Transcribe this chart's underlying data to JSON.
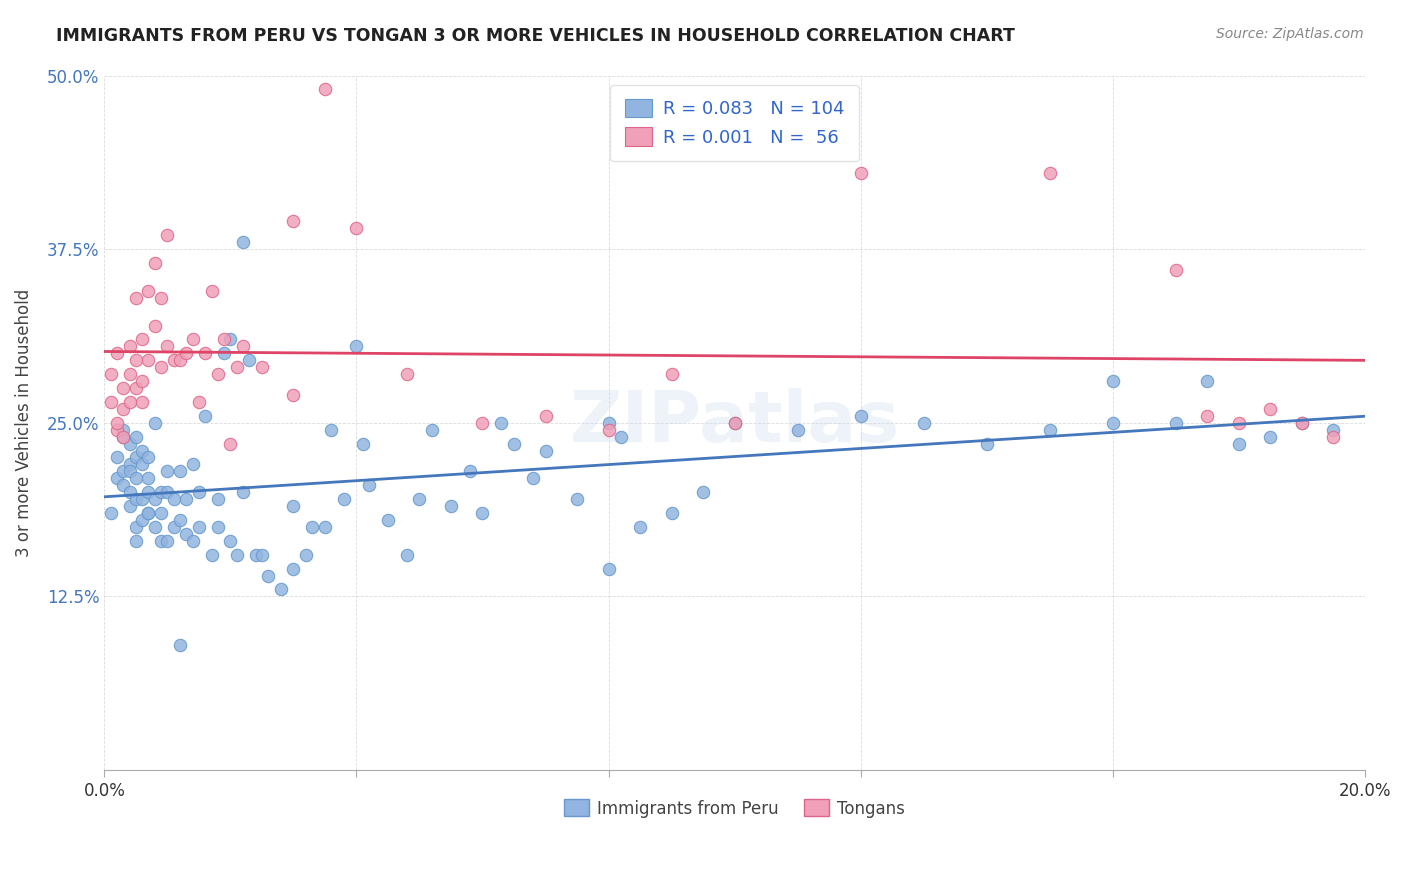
{
  "title": "IMMIGRANTS FROM PERU VS TONGAN 3 OR MORE VEHICLES IN HOUSEHOLD CORRELATION CHART",
  "source": "Source: ZipAtlas.com",
  "ylabel": "3 or more Vehicles in Household",
  "xlim": [
    0.0,
    0.2
  ],
  "ylim": [
    0.0,
    0.5
  ],
  "xticks": [
    0.0,
    0.2
  ],
  "xtick_labels": [
    "0.0%",
    "20.0%"
  ],
  "ytick_labels": [
    "12.5%",
    "25.0%",
    "37.5%",
    "50.0%"
  ],
  "ytick_vals": [
    0.125,
    0.25,
    0.375,
    0.5
  ],
  "peru_color": "#92b4e0",
  "peru_color_dark": "#6699cc",
  "tongan_color": "#f0a0b8",
  "tongan_color_dark": "#dd6688",
  "peru_R": 0.083,
  "peru_N": 104,
  "tongan_R": 0.001,
  "tongan_N": 56,
  "peru_trend_color": "#4477bb",
  "tongan_trend_color": "#dd4466",
  "legend_R_color": "#3366cc",
  "background_color": "#ffffff",
  "peru_x": [
    0.001,
    0.002,
    0.002,
    0.003,
    0.003,
    0.003,
    0.003,
    0.004,
    0.004,
    0.004,
    0.004,
    0.004,
    0.005,
    0.005,
    0.005,
    0.005,
    0.005,
    0.005,
    0.006,
    0.006,
    0.006,
    0.006,
    0.007,
    0.007,
    0.007,
    0.007,
    0.007,
    0.008,
    0.008,
    0.008,
    0.009,
    0.009,
    0.009,
    0.01,
    0.01,
    0.01,
    0.011,
    0.011,
    0.012,
    0.012,
    0.013,
    0.013,
    0.014,
    0.014,
    0.015,
    0.015,
    0.016,
    0.017,
    0.018,
    0.018,
    0.019,
    0.02,
    0.02,
    0.021,
    0.022,
    0.023,
    0.024,
    0.025,
    0.026,
    0.028,
    0.03,
    0.03,
    0.032,
    0.033,
    0.035,
    0.036,
    0.038,
    0.04,
    0.041,
    0.042,
    0.045,
    0.048,
    0.05,
    0.052,
    0.055,
    0.058,
    0.06,
    0.063,
    0.065,
    0.068,
    0.07,
    0.075,
    0.08,
    0.085,
    0.09,
    0.095,
    0.1,
    0.11,
    0.12,
    0.13,
    0.14,
    0.15,
    0.16,
    0.17,
    0.18,
    0.185,
    0.19,
    0.195,
    0.16,
    0.175,
    0.08,
    0.082,
    0.012,
    0.022
  ],
  "peru_y": [
    0.185,
    0.225,
    0.21,
    0.24,
    0.205,
    0.245,
    0.215,
    0.19,
    0.22,
    0.235,
    0.2,
    0.215,
    0.165,
    0.225,
    0.195,
    0.24,
    0.21,
    0.175,
    0.22,
    0.18,
    0.195,
    0.23,
    0.2,
    0.185,
    0.225,
    0.21,
    0.185,
    0.175,
    0.195,
    0.25,
    0.2,
    0.165,
    0.185,
    0.215,
    0.2,
    0.165,
    0.175,
    0.195,
    0.18,
    0.215,
    0.17,
    0.195,
    0.165,
    0.22,
    0.175,
    0.2,
    0.255,
    0.155,
    0.195,
    0.175,
    0.3,
    0.31,
    0.165,
    0.155,
    0.2,
    0.295,
    0.155,
    0.155,
    0.14,
    0.13,
    0.19,
    0.145,
    0.155,
    0.175,
    0.175,
    0.245,
    0.195,
    0.305,
    0.235,
    0.205,
    0.18,
    0.155,
    0.195,
    0.245,
    0.19,
    0.215,
    0.185,
    0.25,
    0.235,
    0.21,
    0.23,
    0.195,
    0.25,
    0.175,
    0.185,
    0.2,
    0.25,
    0.245,
    0.255,
    0.25,
    0.235,
    0.245,
    0.25,
    0.25,
    0.235,
    0.24,
    0.25,
    0.245,
    0.28,
    0.28,
    0.145,
    0.24,
    0.09,
    0.38
  ],
  "tongan_x": [
    0.001,
    0.001,
    0.002,
    0.002,
    0.002,
    0.003,
    0.003,
    0.003,
    0.004,
    0.004,
    0.004,
    0.005,
    0.005,
    0.005,
    0.006,
    0.006,
    0.006,
    0.007,
    0.007,
    0.008,
    0.008,
    0.009,
    0.009,
    0.01,
    0.01,
    0.011,
    0.012,
    0.013,
    0.014,
    0.015,
    0.016,
    0.017,
    0.018,
    0.019,
    0.02,
    0.021,
    0.022,
    0.025,
    0.03,
    0.035,
    0.04,
    0.048,
    0.06,
    0.07,
    0.08,
    0.09,
    0.1,
    0.12,
    0.15,
    0.17,
    0.175,
    0.18,
    0.185,
    0.19,
    0.195,
    0.03
  ],
  "tongan_y": [
    0.265,
    0.285,
    0.245,
    0.3,
    0.25,
    0.275,
    0.24,
    0.26,
    0.305,
    0.285,
    0.265,
    0.295,
    0.34,
    0.275,
    0.28,
    0.31,
    0.265,
    0.345,
    0.295,
    0.365,
    0.32,
    0.29,
    0.34,
    0.305,
    0.385,
    0.295,
    0.295,
    0.3,
    0.31,
    0.265,
    0.3,
    0.345,
    0.285,
    0.31,
    0.235,
    0.29,
    0.305,
    0.29,
    0.27,
    0.49,
    0.39,
    0.285,
    0.25,
    0.255,
    0.245,
    0.285,
    0.25,
    0.43,
    0.43,
    0.36,
    0.255,
    0.25,
    0.26,
    0.25,
    0.24,
    0.395
  ]
}
